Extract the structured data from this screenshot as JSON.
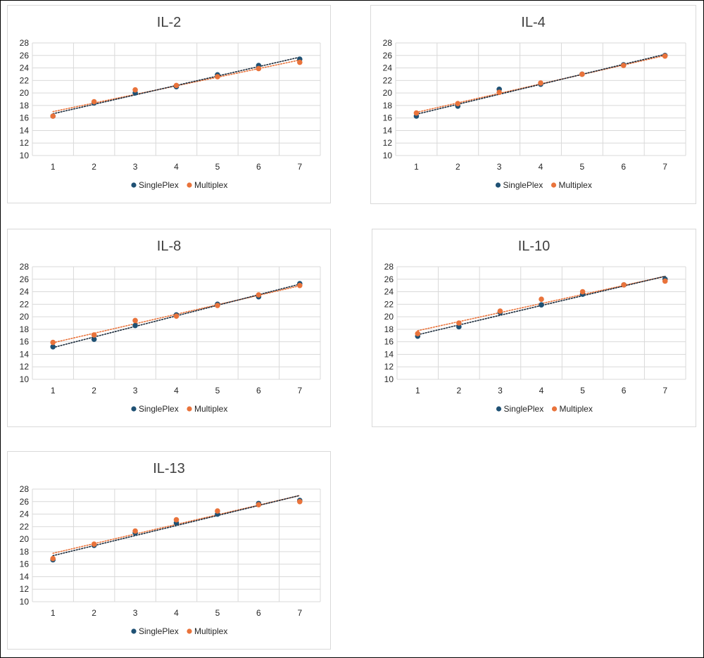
{
  "colors": {
    "singleplex": "#1f5174",
    "multiplex": "#e9733b",
    "grid": "#d9d9d9"
  },
  "chart_data": [
    {
      "type": "scatter",
      "title": "IL-2",
      "x": [
        1,
        2,
        3,
        4,
        5,
        6,
        7
      ],
      "ylim": [
        10,
        28
      ],
      "xlim": [
        1,
        7
      ],
      "ytick_step": 2,
      "grid": true,
      "legend_position": "bottom",
      "trendline": "linear (dotted)",
      "series": [
        {
          "name": "SinglePlex",
          "values": [
            16.3,
            18.4,
            20.0,
            21.0,
            22.9,
            24.4,
            25.4
          ]
        },
        {
          "name": "Multiplex",
          "values": [
            16.3,
            18.6,
            20.5,
            21.2,
            22.6,
            23.9,
            24.9
          ]
        }
      ]
    },
    {
      "type": "scatter",
      "title": "IL-4",
      "x": [
        1,
        2,
        3,
        4,
        5,
        6,
        7
      ],
      "ylim": [
        10,
        28
      ],
      "xlim": [
        1,
        7
      ],
      "ytick_step": 2,
      "grid": true,
      "legend_position": "bottom",
      "trendline": "linear (dotted)",
      "series": [
        {
          "name": "SinglePlex",
          "values": [
            16.3,
            17.9,
            20.6,
            21.4,
            23.0,
            24.5,
            26.0
          ]
        },
        {
          "name": "Multiplex",
          "values": [
            16.8,
            18.3,
            20.1,
            21.6,
            23.0,
            24.4,
            25.9
          ]
        }
      ]
    },
    {
      "type": "scatter",
      "title": "IL-8",
      "x": [
        1,
        2,
        3,
        4,
        5,
        6,
        7
      ],
      "ylim": [
        10,
        28
      ],
      "xlim": [
        1,
        7
      ],
      "ytick_step": 2,
      "grid": true,
      "legend_position": "bottom",
      "trendline": "linear (dotted)",
      "series": [
        {
          "name": "SinglePlex",
          "values": [
            15.2,
            16.4,
            18.6,
            20.3,
            22.0,
            23.2,
            25.3
          ]
        },
        {
          "name": "Multiplex",
          "values": [
            15.9,
            17.1,
            19.4,
            20.1,
            21.8,
            23.5,
            25.0
          ]
        }
      ]
    },
    {
      "type": "scatter",
      "title": "IL-10",
      "x": [
        1,
        2,
        3,
        4,
        5,
        6,
        7
      ],
      "ylim": [
        10,
        28
      ],
      "xlim": [
        1,
        7
      ],
      "ytick_step": 2,
      "grid": true,
      "legend_position": "bottom",
      "trendline": "linear (dotted)",
      "series": [
        {
          "name": "SinglePlex",
          "values": [
            16.9,
            18.4,
            20.7,
            21.9,
            23.6,
            25.1,
            26.0
          ]
        },
        {
          "name": "Multiplex",
          "values": [
            17.3,
            19.0,
            20.9,
            22.8,
            24.0,
            25.1,
            25.7
          ]
        }
      ]
    },
    {
      "type": "scatter",
      "title": "IL-13",
      "x": [
        1,
        2,
        3,
        4,
        5,
        6,
        7
      ],
      "ylim": [
        10,
        28
      ],
      "xlim": [
        1,
        7
      ],
      "ytick_step": 2,
      "grid": true,
      "legend_position": "bottom",
      "trendline": "linear (dotted)",
      "series": [
        {
          "name": "SinglePlex",
          "values": [
            16.7,
            19.0,
            21.0,
            22.6,
            24.0,
            25.7,
            26.2
          ]
        },
        {
          "name": "Multiplex",
          "values": [
            16.9,
            19.2,
            21.3,
            23.1,
            24.5,
            25.5,
            26.0
          ]
        }
      ]
    }
  ]
}
